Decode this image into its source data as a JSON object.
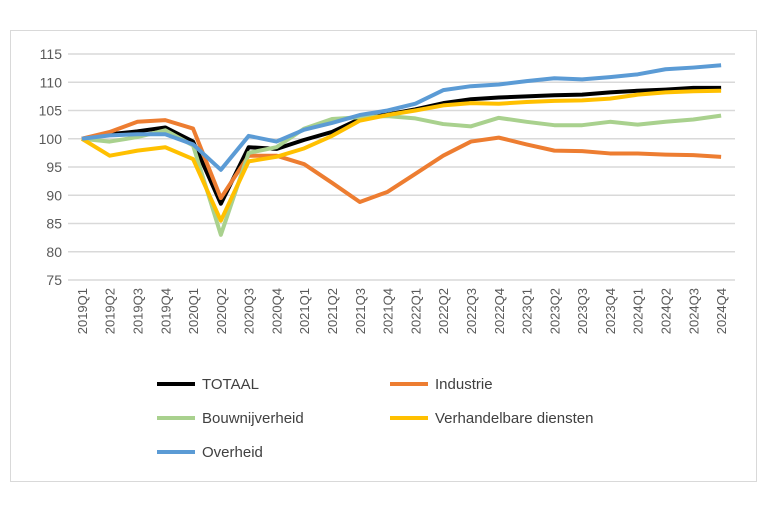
{
  "chart_data": {
    "type": "line",
    "title": "",
    "xlabel": "",
    "ylabel": "",
    "ylim": [
      75,
      115
    ],
    "yticks": [
      75,
      80,
      85,
      90,
      95,
      100,
      105,
      110,
      115
    ],
    "grid": true,
    "legend_position": "bottom",
    "categories": [
      "2019Q1",
      "2019Q2",
      "2019Q3",
      "2019Q4",
      "2020Q1",
      "2020Q2",
      "2020Q3",
      "2020Q4",
      "2021Q1",
      "2021Q2",
      "2021Q3",
      "2021Q4",
      "2022Q1",
      "2022Q2",
      "2022Q3",
      "2022Q4",
      "2023Q1",
      "2023Q2",
      "2023Q3",
      "2023Q4",
      "2024Q1",
      "2024Q2",
      "2024Q3",
      "2024Q4"
    ],
    "series": [
      {
        "name": "TOTAAL",
        "color": "#000000",
        "values": [
          100,
          100.8,
          101.3,
          102,
          99.5,
          88.5,
          98.5,
          98.2,
          99.8,
          101.2,
          103.5,
          104.3,
          105.2,
          106.3,
          107,
          107.3,
          107.5,
          107.7,
          107.8,
          108.2,
          108.5,
          108.7,
          109,
          109
        ]
      },
      {
        "name": "Industrie",
        "color": "#ED7D31",
        "values": [
          100,
          101.2,
          103,
          103.3,
          101.8,
          89.5,
          97,
          97,
          95.5,
          92.2,
          88.8,
          90.6,
          93.8,
          97,
          99.5,
          100.2,
          99,
          97.9,
          97.8,
          97.4,
          97.4,
          97.2,
          97.1,
          96.8
        ]
      },
      {
        "name": "Bouwnijverheid",
        "color": "#A9D18E",
        "values": [
          100,
          99.5,
          100.3,
          101.5,
          98.8,
          83,
          97.5,
          98.5,
          101.8,
          103.5,
          103.8,
          104,
          103.6,
          102.6,
          102.2,
          103.7,
          103,
          102.4,
          102.4,
          103,
          102.5,
          103,
          103.4,
          104.1
        ]
      },
      {
        "name": "Verhandelbare diensten",
        "color": "#FFC000",
        "values": [
          100,
          97,
          97.9,
          98.5,
          96.4,
          85.5,
          96,
          96.8,
          98.3,
          100.5,
          103.2,
          104.2,
          105,
          105.9,
          106.3,
          106.2,
          106.5,
          106.7,
          106.8,
          107.1,
          107.8,
          108.2,
          108.4,
          108.5
        ]
      },
      {
        "name": "Overheid",
        "color": "#5B9BD5",
        "values": [
          100,
          100.6,
          100.8,
          100.8,
          99,
          94.5,
          100.5,
          99.5,
          101.6,
          102.8,
          104.2,
          105,
          106.2,
          108.6,
          109.3,
          109.6,
          110.2,
          110.7,
          110.5,
          110.9,
          111.4,
          112.3,
          112.6,
          113
        ]
      }
    ]
  }
}
